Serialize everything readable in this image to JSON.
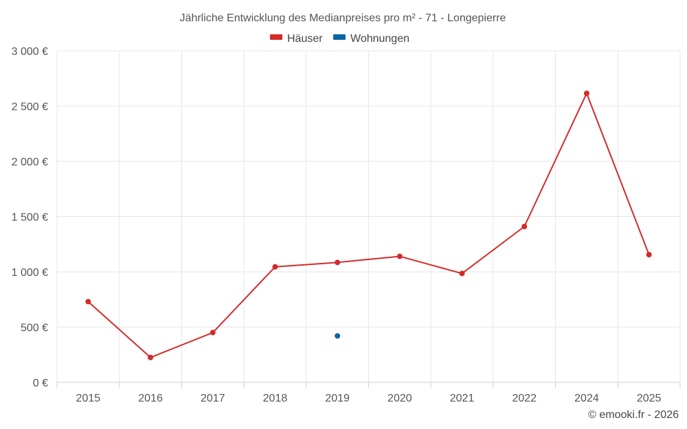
{
  "chart_data": {
    "type": "line",
    "title": "Jährliche Entwicklung des Medianpreises pro m² - 71 - Longepierre",
    "categories": [
      "2015",
      "2016",
      "2017",
      "2018",
      "2019",
      "2020",
      "2021",
      "2022",
      "2024",
      "2025"
    ],
    "ylim": [
      0,
      3000
    ],
    "yticks": [
      0,
      500,
      1000,
      1500,
      2000,
      2500,
      3000
    ],
    "ytick_labels": [
      "0 €",
      "500 €",
      "1 000 €",
      "1 500 €",
      "2 000 €",
      "2 500 €",
      "3 000 €"
    ],
    "grid": true,
    "legend_position": "top-center",
    "series": [
      {
        "name": "Häuser",
        "color": "#d32a2a",
        "values": [
          730,
          225,
          450,
          1045,
          1085,
          1140,
          985,
          1410,
          2615,
          1155
        ]
      },
      {
        "name": "Wohnungen",
        "color": "#0b66a6",
        "values": [
          null,
          null,
          null,
          null,
          420,
          null,
          null,
          null,
          null,
          null
        ]
      }
    ]
  },
  "credit": "© emooki.fr - 2026"
}
